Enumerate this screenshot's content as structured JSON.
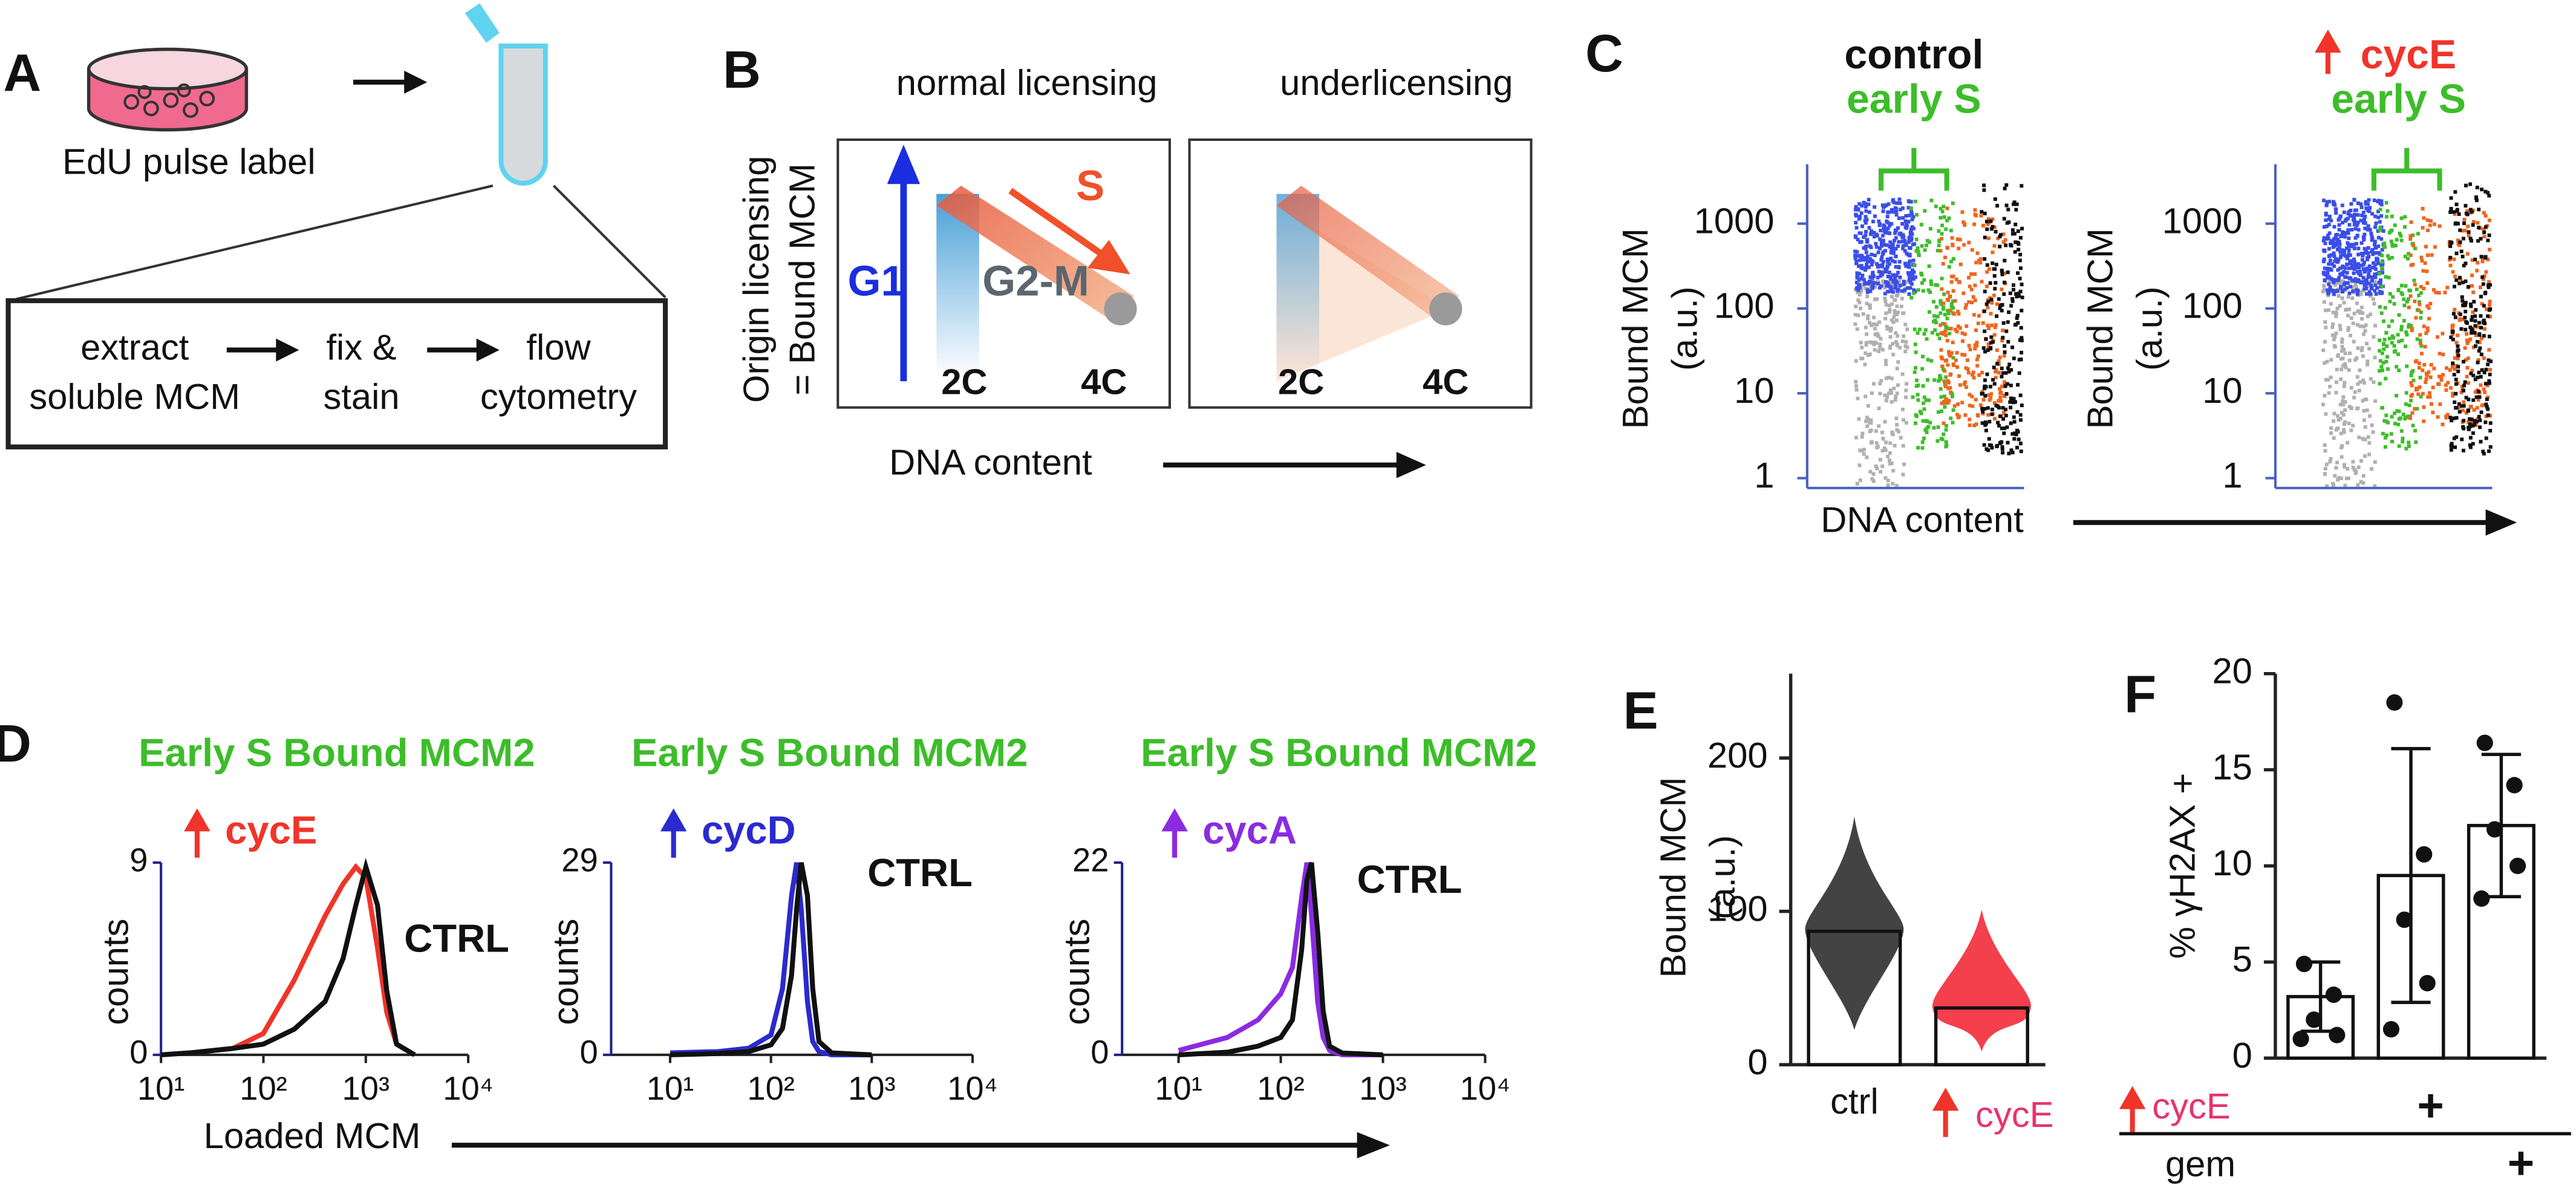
{
  "figure": {
    "A": {
      "label": "A",
      "pulse": "EdU pulse label",
      "steps": [
        [
          "extract",
          "soluble MCM"
        ],
        [
          "fix &",
          "stain"
        ],
        [
          "flow",
          "cytometry"
        ]
      ]
    },
    "B": {
      "label": "B",
      "ylabel": [
        "Origin licensing",
        "= Bound MCM"
      ],
      "xlabel": "DNA content",
      "boxes": [
        {
          "title": "normal licensing",
          "phases": [
            "G1",
            "S",
            "G2-M"
          ],
          "ticks": [
            "2C",
            "4C"
          ]
        },
        {
          "title": "underlicensing",
          "ticks": [
            "2C",
            "4C"
          ]
        }
      ]
    },
    "C": {
      "label": "C",
      "xlabel": "DNA content",
      "ylabel": [
        "Bound MCM",
        "(a.u.)"
      ],
      "log_y": true,
      "ylim": [
        1,
        5000
      ],
      "yticks": [
        1,
        10,
        100,
        1000
      ],
      "plots": [
        {
          "title": [
            "control",
            "early S"
          ]
        },
        {
          "title": [
            "cycE",
            "early S"
          ]
        }
      ]
    },
    "D": {
      "label": "D",
      "xlabel": "Loaded MCM"
    },
    "E": {
      "label": "E"
    },
    "F": {
      "label": "F"
    }
  },
  "chart_data": [
    {
      "type": "line",
      "title": "Early S Bound MCM2",
      "ylabel": "counts",
      "x_log": true,
      "xlim": [
        10,
        10000
      ],
      "xticks": [
        {
          "value": 10,
          "label": "10¹"
        },
        {
          "value": 100,
          "label": "10²"
        },
        {
          "value": 1000,
          "label": "10³"
        },
        {
          "value": 10000,
          "label": "10⁴"
        }
      ],
      "ylim": [
        0,
        9
      ],
      "yticks": [
        0,
        9
      ],
      "x": [
        10,
        20,
        50,
        100,
        200,
        400,
        600,
        800,
        1000,
        1300,
        1600,
        2000,
        3000
      ],
      "series": [
        {
          "name": "cycE",
          "color": "#f0342a",
          "values": [
            0,
            0.1,
            0.3,
            1,
            3.5,
            6.5,
            8,
            8.8,
            8.3,
            5,
            2,
            0.5,
            0
          ]
        },
        {
          "name": "CTRL",
          "color": "#111111",
          "values": [
            0,
            0.1,
            0.3,
            0.5,
            1.2,
            2.5,
            4.5,
            7,
            8.8,
            7,
            3,
            0.5,
            0
          ]
        }
      ]
    },
    {
      "type": "line",
      "title": "Early S Bound MCM2",
      "ylabel": "counts",
      "x_log": true,
      "xlim": [
        2.6,
        10000
      ],
      "xticks": [
        {
          "value": 10,
          "label": "10¹"
        },
        {
          "value": 100,
          "label": "10²"
        },
        {
          "value": 1000,
          "label": "10³"
        },
        {
          "value": 10000,
          "label": "10⁴"
        }
      ],
      "ylim": [
        0,
        29
      ],
      "yticks": [
        0,
        29
      ],
      "x": [
        10,
        30,
        60,
        100,
        130,
        160,
        180,
        200,
        230,
        260,
        300,
        400,
        1000
      ],
      "series": [
        {
          "name": "cycD",
          "color": "#2a2ad0",
          "values": [
            0.3,
            0.5,
            1,
            3,
            10,
            24,
            29,
            22,
            8,
            2,
            0.5,
            0,
            0
          ]
        },
        {
          "name": "CTRL",
          "color": "#111111",
          "values": [
            0,
            0.2,
            0.5,
            1.5,
            4,
            12,
            22,
            29,
            24,
            10,
            2,
            0.3,
            0
          ]
        }
      ]
    },
    {
      "type": "line",
      "title": "Early S Bound MCM2",
      "ylabel": "counts",
      "x_log": true,
      "xlim": [
        2.8,
        10000
      ],
      "xticks": [
        {
          "value": 10,
          "label": "10¹"
        },
        {
          "value": 100,
          "label": "10²"
        },
        {
          "value": 1000,
          "label": "10³"
        },
        {
          "value": 10000,
          "label": "10⁴"
        }
      ],
      "ylim": [
        0,
        22
      ],
      "yticks": [
        0,
        22
      ],
      "x": [
        10,
        30,
        60,
        100,
        130,
        160,
        180,
        200,
        230,
        260,
        300,
        400,
        1000
      ],
      "series": [
        {
          "name": "cycA",
          "color": "#8a2be2",
          "values": [
            0.5,
            2,
            4,
            7,
            10,
            18,
            22,
            16,
            6,
            2,
            0.5,
            0,
            0
          ]
        },
        {
          "name": "CTRL",
          "color": "#111111",
          "values": [
            0,
            0.3,
            1,
            2,
            4,
            12,
            20,
            22,
            14,
            5,
            1,
            0.2,
            0
          ]
        }
      ]
    },
    {
      "type": "bar",
      "ylabel": [
        "Bound MCM",
        "(a.u.)"
      ],
      "categories": [
        "ctrl",
        "cycE"
      ],
      "values": [
        87,
        37
      ],
      "ylim": [
        0,
        255
      ],
      "yticks": [
        0,
        100,
        200
      ]
    },
    {
      "type": "bar",
      "ylabel": "% γH2AX +",
      "categories": [
        null,
        null,
        null
      ],
      "values": [
        3.2,
        9.5,
        12.1
      ],
      "errors": [
        1.8,
        6.6,
        3.7
      ],
      "points": [
        [
          4.9,
          3.3,
          2.0,
          1.2,
          1.0
        ],
        [
          18.5,
          10.6,
          7.2,
          3.9,
          1.5
        ],
        [
          16.4,
          14.2,
          11.9,
          10.0,
          8.3
        ]
      ],
      "ylim": [
        0,
        20
      ],
      "yticks": [
        0,
        5,
        10,
        15,
        20
      ],
      "conditions": [
        {
          "name": "cycE",
          "marks": [
            null,
            "+",
            null
          ]
        },
        {
          "name": "gem",
          "marks": [
            null,
            null,
            "+"
          ]
        }
      ]
    }
  ]
}
